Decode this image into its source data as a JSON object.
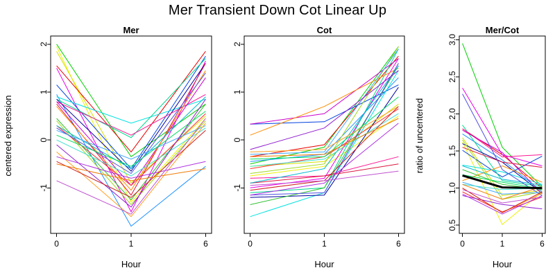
{
  "title": "Mer Transient Down Cot Linear Up",
  "axis_color": "#000000",
  "background": "#ffffff",
  "chart_data": [
    {
      "type": "line",
      "title": "Mer",
      "xlabel": "Hour",
      "ylabel": "centered expression",
      "x_labels": [
        "0",
        "1",
        "6"
      ],
      "ylim": [
        -1.95,
        2.17
      ],
      "yticks": [
        -1,
        0,
        1,
        2
      ],
      "ytick_labels": [
        "-1",
        "0",
        "1",
        "2"
      ],
      "grid": false,
      "legend": "none",
      "series": [
        {
          "color": "#00d000",
          "values": [
            2.0,
            -0.35,
            0.75
          ]
        },
        {
          "color": "#f0f000",
          "values": [
            1.95,
            -1.3,
            0.45
          ]
        },
        {
          "color": "#d8e000",
          "values": [
            1.85,
            -0.9,
            0.5
          ]
        },
        {
          "color": "#e80000",
          "values": [
            1.55,
            -0.25,
            1.85
          ]
        },
        {
          "color": "#e800e8",
          "values": [
            1.5,
            -1.5,
            1.65
          ]
        },
        {
          "color": "#0040e0",
          "values": [
            1.15,
            -0.6,
            1.75
          ]
        },
        {
          "color": "#1e90ff",
          "values": [
            0.95,
            -1.8,
            -0.55
          ]
        },
        {
          "color": "#00e0e0",
          "values": [
            0.9,
            0.35,
            0.85
          ]
        },
        {
          "color": "#00d890",
          "values": [
            0.85,
            0.05,
            1.7
          ]
        },
        {
          "color": "#0000a0",
          "values": [
            0.85,
            -0.65,
            1.6
          ]
        },
        {
          "color": "#ff1493",
          "values": [
            0.8,
            0.1,
            0.95
          ]
        },
        {
          "color": "#cc00cc",
          "values": [
            0.8,
            -0.95,
            1.3
          ]
        },
        {
          "color": "#dc143c",
          "values": [
            0.75,
            -1.15,
            1.6
          ]
        },
        {
          "color": "#ff8c00",
          "values": [
            0.7,
            -1.05,
            1.45
          ]
        },
        {
          "color": "#30c030",
          "values": [
            0.45,
            -1.25,
            0.75
          ]
        },
        {
          "color": "#a0d820",
          "values": [
            0.4,
            -1.35,
            0.4
          ]
        },
        {
          "color": "#ff3030",
          "values": [
            0.3,
            -0.95,
            0.55
          ]
        },
        {
          "color": "#00b8d0",
          "values": [
            0.3,
            -0.6,
            0.9
          ]
        },
        {
          "color": "#5050e0",
          "values": [
            0.25,
            -0.7,
            1.4
          ]
        },
        {
          "color": "#40a8ff",
          "values": [
            0.2,
            -0.4,
            0.3
          ]
        },
        {
          "color": "#00e060",
          "values": [
            0.1,
            -0.55,
            0.6
          ]
        },
        {
          "color": "#40e0d0",
          "values": [
            0.0,
            -0.75,
            0.25
          ]
        },
        {
          "color": "#9020d0",
          "values": [
            -0.1,
            -1.4,
            0.85
          ]
        },
        {
          "color": "#ff9f20",
          "values": [
            -0.25,
            -1.6,
            0.35
          ]
        },
        {
          "color": "#b030e0",
          "values": [
            -0.35,
            -0.8,
            -0.45
          ]
        },
        {
          "color": "#d02020",
          "values": [
            -0.45,
            -1.2,
            0.2
          ]
        },
        {
          "color": "#f07800",
          "values": [
            -0.5,
            -0.85,
            -0.6
          ]
        },
        {
          "color": "#c050d0",
          "values": [
            -0.85,
            -1.55,
            0.45
          ]
        }
      ]
    },
    {
      "type": "line",
      "title": "Cot",
      "xlabel": "Hour",
      "ylabel": "",
      "x_labels": [
        "0",
        "1",
        "6"
      ],
      "ylim": [
        -1.95,
        2.17
      ],
      "yticks": [
        -1,
        0,
        1,
        2
      ],
      "ytick_labels": [
        "-1",
        "0",
        "1",
        "2"
      ],
      "grid": false,
      "legend": "none",
      "series": [
        {
          "color": "#00d000",
          "values": [
            -0.5,
            -0.15,
            1.95
          ]
        },
        {
          "color": "#f0f000",
          "values": [
            -0.75,
            -0.55,
            0.5
          ]
        },
        {
          "color": "#d8e000",
          "values": [
            -0.55,
            -0.45,
            0.75
          ]
        },
        {
          "color": "#e80000",
          "values": [
            -0.35,
            -0.1,
            1.75
          ]
        },
        {
          "color": "#e800e8",
          "values": [
            -1.0,
            -0.8,
            1.7
          ]
        },
        {
          "color": "#0040e0",
          "values": [
            0.33,
            0.38,
            1.15
          ]
        },
        {
          "color": "#1e90ff",
          "values": [
            -0.45,
            -0.3,
            1.3
          ]
        },
        {
          "color": "#00e0e0",
          "values": [
            -1.6,
            -1.1,
            1.45
          ]
        },
        {
          "color": "#00d890",
          "values": [
            -1.1,
            -1.0,
            1.9
          ]
        },
        {
          "color": "#0000a0",
          "values": [
            -1.2,
            -1.15,
            1.1
          ]
        },
        {
          "color": "#ff1493",
          "values": [
            -0.8,
            -0.75,
            -0.35
          ]
        },
        {
          "color": "#cc00cc",
          "values": [
            0.33,
            0.55,
            1.7
          ]
        },
        {
          "color": "#dc143c",
          "values": [
            -0.9,
            -0.75,
            -0.5
          ]
        },
        {
          "color": "#ff8c00",
          "values": [
            0.1,
            0.7,
            1.5
          ]
        },
        {
          "color": "#30c030",
          "values": [
            -1.35,
            -1.0,
            1.55
          ]
        },
        {
          "color": "#a0d820",
          "values": [
            -0.7,
            -0.5,
            1.95
          ]
        },
        {
          "color": "#ff3030",
          "values": [
            -0.6,
            -0.35,
            0.65
          ]
        },
        {
          "color": "#00b8d0",
          "values": [
            -0.9,
            -0.6,
            1.55
          ]
        },
        {
          "color": "#5050e0",
          "values": [
            -1.15,
            -1.1,
            1.6
          ]
        },
        {
          "color": "#40a8ff",
          "values": [
            -0.3,
            -0.25,
            1.9
          ]
        },
        {
          "color": "#00e060",
          "values": [
            -0.4,
            -0.35,
            0.9
          ]
        },
        {
          "color": "#40e0d0",
          "values": [
            -0.55,
            -0.4,
            0.55
          ]
        },
        {
          "color": "#9020d0",
          "values": [
            -0.2,
            0.25,
            1.45
          ]
        },
        {
          "color": "#ff9f20",
          "values": [
            -0.25,
            -0.2,
            0.7
          ]
        },
        {
          "color": "#b030e0",
          "values": [
            -1.15,
            -0.9,
            0.35
          ]
        },
        {
          "color": "#d02020",
          "values": [
            -1.05,
            -0.85,
            0.7
          ]
        },
        {
          "color": "#f07800",
          "values": [
            -0.35,
            -0.3,
            0.45
          ]
        },
        {
          "color": "#c050d0",
          "values": [
            -0.95,
            -0.85,
            -0.65
          ]
        }
      ]
    },
    {
      "type": "line",
      "title": "Mer/Cot",
      "xlabel": "Hour",
      "ylabel": "ratio of uncentered",
      "x_labels": [
        "0",
        "1",
        "6"
      ],
      "ylim": [
        0.39,
        3.05
      ],
      "yticks": [
        0.5,
        1.0,
        1.5,
        2.0,
        2.5,
        3.0
      ],
      "ytick_labels": [
        "0.5",
        "1.0",
        "1.5",
        "2.0",
        "2.5",
        "3.0"
      ],
      "grid": false,
      "legend": "none",
      "series": [
        {
          "color": "#00d000",
          "values": [
            2.95,
            1.55,
            1.02
          ]
        },
        {
          "color": "#f0f000",
          "values": [
            1.62,
            0.51,
            0.95
          ]
        },
        {
          "color": "#d8e000",
          "values": [
            1.68,
            0.9,
            0.97
          ]
        },
        {
          "color": "#e80000",
          "values": [
            1.8,
            1.45,
            1.0
          ]
        },
        {
          "color": "#e800e8",
          "values": [
            2.35,
            1.45,
            1.3
          ]
        },
        {
          "color": "#0040e0",
          "values": [
            1.51,
            1.15,
            1.43
          ]
        },
        {
          "color": "#1e90ff",
          "values": [
            1.73,
            1.38,
            0.95
          ]
        },
        {
          "color": "#00e0e0",
          "values": [
            1.31,
            1.22,
            1.05
          ]
        },
        {
          "color": "#00d890",
          "values": [
            1.85,
            1.1,
            1.02
          ]
        },
        {
          "color": "#0000a0",
          "values": [
            1.6,
            1.35,
            0.93
          ]
        },
        {
          "color": "#ff1493",
          "values": [
            1.8,
            1.42,
            1.45
          ]
        },
        {
          "color": "#cc00cc",
          "values": [
            1.78,
            1.48,
            0.92
          ]
        },
        {
          "color": "#dc143c",
          "values": [
            1.55,
            1.35,
            1.28
          ]
        },
        {
          "color": "#ff8c00",
          "values": [
            1.1,
            1.3,
            1.08
          ]
        },
        {
          "color": "#30c030",
          "values": [
            1.25,
            1.05,
            0.98
          ]
        },
        {
          "color": "#a0d820",
          "values": [
            1.65,
            0.85,
            0.95
          ]
        },
        {
          "color": "#ff3030",
          "values": [
            0.95,
            0.68,
            0.88
          ]
        },
        {
          "color": "#00b8d0",
          "values": [
            1.3,
            1.12,
            1.04
          ]
        },
        {
          "color": "#5050e0",
          "values": [
            2.27,
            1.25,
            0.9
          ]
        },
        {
          "color": "#40a8ff",
          "values": [
            1.08,
            0.92,
            0.94
          ]
        },
        {
          "color": "#00e060",
          "values": [
            1.18,
            1.08,
            0.99
          ]
        },
        {
          "color": "#40e0d0",
          "values": [
            1.05,
            0.98,
            1.0
          ]
        },
        {
          "color": "#9020d0",
          "values": [
            0.9,
            0.78,
            0.72
          ]
        },
        {
          "color": "#ff9f20",
          "values": [
            1.0,
            0.67,
            0.93
          ]
        },
        {
          "color": "#b030e0",
          "values": [
            0.92,
            0.65,
            0.9
          ]
        },
        {
          "color": "#d02020",
          "values": [
            1.0,
            0.67,
            0.95
          ]
        },
        {
          "color": "#f07800",
          "values": [
            1.05,
            0.85,
            1.02
          ]
        },
        {
          "color": "#c050d0",
          "values": [
            0.98,
            0.8,
            0.88
          ]
        },
        {
          "color": "#000000",
          "width": 3,
          "name": "mean",
          "values": [
            1.17,
            1.01,
            1.0
          ]
        }
      ]
    }
  ]
}
